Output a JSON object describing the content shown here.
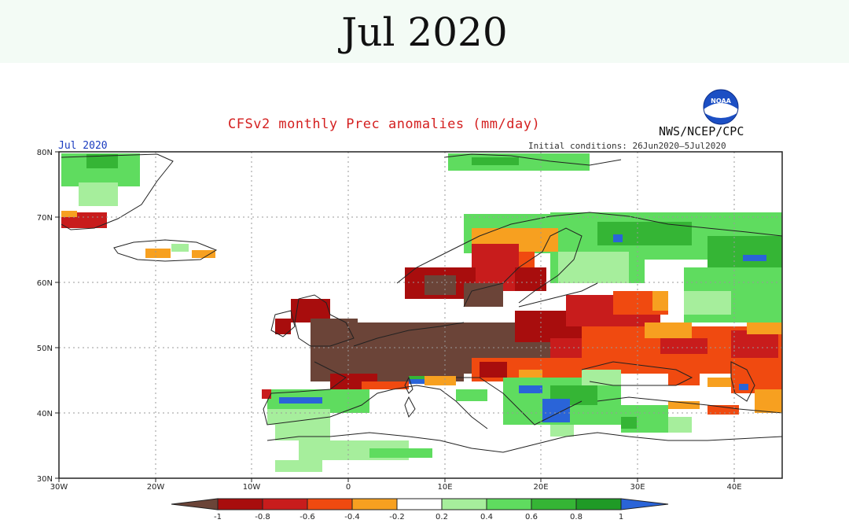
{
  "page_title": "Jul 2020",
  "map": {
    "title": "CFSv2 monthly Prec anomalies (mm/day)",
    "agency": "NWS/NCEP/CPC",
    "logo_text": "NOAA",
    "month_label": "Jul 2020",
    "initial_conditions": "Initial conditions: 26Jun2020–5Jul2020",
    "lon_ticks": [
      "30W",
      "20W",
      "10W",
      "0",
      "10E",
      "20E",
      "30E",
      "40E"
    ],
    "lat_ticks": [
      "80N",
      "70N",
      "60N",
      "50N",
      "40N",
      "30N"
    ]
  },
  "legend": {
    "levels": [
      "-1",
      "-0.8",
      "-0.6",
      "-0.4",
      "-0.2",
      "0.2",
      "0.4",
      "0.6",
      "0.8",
      "1"
    ],
    "colors": [
      "#6b4438",
      "#a80d0d",
      "#c81c1c",
      "#f04a10",
      "#f7a020",
      "#ffffff",
      "#a6ee9c",
      "#5fdc5f",
      "#35b535",
      "#1f9a26",
      "#2a64d8"
    ]
  },
  "colors": {
    "brown": "#6b4438",
    "dark_red": "#a80d0d",
    "red": "#c81c1c",
    "orange_red": "#f04a10",
    "orange": "#f7a020",
    "light_green": "#a6ee9c",
    "green": "#5fdc5f",
    "mid_green": "#35b535",
    "dark_green": "#1f9a26",
    "blue": "#2a64d8"
  }
}
